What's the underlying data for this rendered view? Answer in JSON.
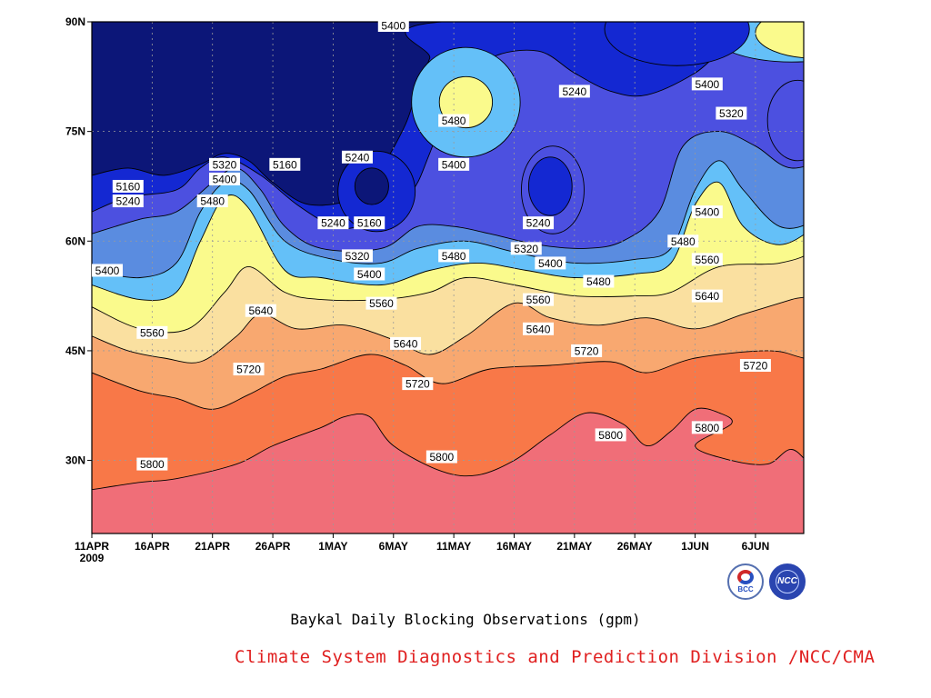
{
  "chart_data": {
    "type": "contour",
    "title": "Baykal Daily Blocking Observations (gpm)",
    "x_ticks": [
      "11APR\n2009",
      "16APR",
      "21APR",
      "26APR",
      "1MAY",
      "6MAY",
      "11MAY",
      "16MAY",
      "21MAY",
      "26MAY",
      "1JUN",
      "6JUN"
    ],
    "y_ticks": [
      "30N",
      "45N",
      "60N",
      "75N",
      "90N"
    ],
    "x_range": [
      "2009-04-11",
      "2009-06-09"
    ],
    "y_range": [
      20,
      90
    ],
    "contour_levels": [
      5160,
      5240,
      5320,
      5400,
      5480,
      5560,
      5640,
      5720,
      5800
    ],
    "level_colors": {
      "lt5160": "#0c1678",
      "5160": "#1428d2",
      "5240": "#4c50e0",
      "5320": "#5a8ce0",
      "5400": "#64c0f8",
      "5480": "#fafa8c",
      "5560": "#fae0a0",
      "5640": "#f8a870",
      "5720": "#f87848",
      "5800": "#f06e78"
    },
    "contour_labels": [
      {
        "text": "5400",
        "x": "2009-05-06",
        "y": 89.5
      },
      {
        "text": "5240",
        "x": "2009-05-21",
        "y": 80.5
      },
      {
        "text": "5400",
        "x": "2009-06-01",
        "y": 81.5
      },
      {
        "text": "5480",
        "x": "2009-05-11",
        "y": 76.5
      },
      {
        "text": "5320",
        "x": "2009-06-03",
        "y": 77.5
      },
      {
        "text": "5320",
        "x": "2009-04-22",
        "y": 70.5
      },
      {
        "text": "5400",
        "x": "2009-05-11",
        "y": 70.5
      },
      {
        "text": "5240",
        "x": "2009-05-03",
        "y": 71.5
      },
      {
        "text": "5160",
        "x": "2009-04-27",
        "y": 70.5
      },
      {
        "text": "5400",
        "x": "2009-04-22",
        "y": 68.5
      },
      {
        "text": "5160",
        "x": "2009-04-14",
        "y": 67.5
      },
      {
        "text": "5240",
        "x": "2009-04-14",
        "y": 65.5
      },
      {
        "text": "5480",
        "x": "2009-04-21",
        "y": 65.5
      },
      {
        "text": "5160",
        "x": "2009-05-04",
        "y": 62.5
      },
      {
        "text": "5240",
        "x": "2009-05-01",
        "y": 62.5
      },
      {
        "text": "5240",
        "x": "2009-05-18",
        "y": 62.5
      },
      {
        "text": "5400",
        "x": "2009-06-01",
        "y": 64.0
      },
      {
        "text": "5480",
        "x": "2009-05-30",
        "y": 60.0
      },
      {
        "text": "5320",
        "x": "2009-05-03",
        "y": 58.0
      },
      {
        "text": "5480",
        "x": "2009-05-11",
        "y": 58.0
      },
      {
        "text": "5320",
        "x": "2009-05-17",
        "y": 59.0
      },
      {
        "text": "5400",
        "x": "2009-05-19",
        "y": 57.0
      },
      {
        "text": "5560",
        "x": "2009-06-01",
        "y": 57.5
      },
      {
        "text": "5400",
        "x": "2009-04-11",
        "y": 56.0
      },
      {
        "text": "5400",
        "x": "2009-05-04",
        "y": 55.5
      },
      {
        "text": "5480",
        "x": "2009-05-23",
        "y": 54.5
      },
      {
        "text": "5640",
        "x": "2009-06-01",
        "y": 52.5
      },
      {
        "text": "5560",
        "x": "2009-05-18",
        "y": 52.0
      },
      {
        "text": "5560",
        "x": "2009-05-05",
        "y": 51.5
      },
      {
        "text": "5640",
        "x": "2009-04-25",
        "y": 50.5
      },
      {
        "text": "5640",
        "x": "2009-05-18",
        "y": 48.0
      },
      {
        "text": "5560",
        "x": "2009-04-16",
        "y": 47.5
      },
      {
        "text": "5640",
        "x": "2009-05-07",
        "y": 46.0
      },
      {
        "text": "5720",
        "x": "2009-05-22",
        "y": 45.0
      },
      {
        "text": "5720",
        "x": "2009-06-05",
        "y": 43.0
      },
      {
        "text": "5720",
        "x": "2009-04-24",
        "y": 42.5
      },
      {
        "text": "5720",
        "x": "2009-05-08",
        "y": 40.5
      },
      {
        "text": "5800",
        "x": "2009-05-24",
        "y": 33.5
      },
      {
        "text": "5800",
        "x": "2009-06-01",
        "y": 34.5
      },
      {
        "text": "5800",
        "x": "2009-05-10",
        "y": 30.5
      },
      {
        "text": "5800",
        "x": "2009-04-16",
        "y": 29.5
      }
    ]
  },
  "credit": "Climate System Diagnostics and Prediction Division /NCC/CMA",
  "logos": {
    "bcc": "BCC",
    "ncc": "NCC",
    "bcc_icon": "bcc-logo-icon",
    "ncc_icon": "ncc-globe-icon"
  }
}
